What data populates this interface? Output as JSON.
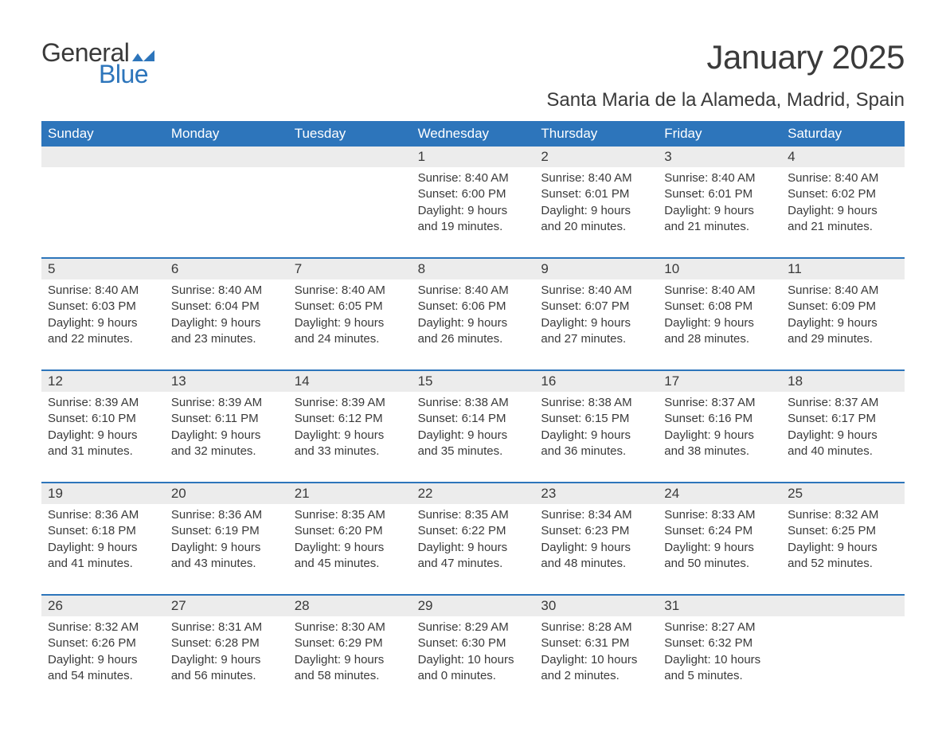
{
  "logo": {
    "text_general": "General",
    "text_blue": "Blue",
    "flag_color": "#2d75bb"
  },
  "title": "January 2025",
  "location": "Santa Maria de la Alameda, Madrid, Spain",
  "colors": {
    "header_bg": "#2d75bb",
    "header_fg": "#ffffff",
    "daynum_bg": "#ececec",
    "week_border": "#2d75bb",
    "text": "#3a3a3a",
    "background": "#ffffff"
  },
  "fonts": {
    "title_size_pt": 32,
    "location_size_pt": 18,
    "dayheader_size_pt": 13,
    "daynum_size_pt": 13,
    "body_size_pt": 11
  },
  "day_names": [
    "Sunday",
    "Monday",
    "Tuesday",
    "Wednesday",
    "Thursday",
    "Friday",
    "Saturday"
  ],
  "weeks": [
    {
      "cells": [
        {
          "num": "",
          "sunrise": "",
          "sunset": "",
          "daylight1": "",
          "daylight2": ""
        },
        {
          "num": "",
          "sunrise": "",
          "sunset": "",
          "daylight1": "",
          "daylight2": ""
        },
        {
          "num": "",
          "sunrise": "",
          "sunset": "",
          "daylight1": "",
          "daylight2": ""
        },
        {
          "num": "1",
          "sunrise": "Sunrise: 8:40 AM",
          "sunset": "Sunset: 6:00 PM",
          "daylight1": "Daylight: 9 hours",
          "daylight2": "and 19 minutes."
        },
        {
          "num": "2",
          "sunrise": "Sunrise: 8:40 AM",
          "sunset": "Sunset: 6:01 PM",
          "daylight1": "Daylight: 9 hours",
          "daylight2": "and 20 minutes."
        },
        {
          "num": "3",
          "sunrise": "Sunrise: 8:40 AM",
          "sunset": "Sunset: 6:01 PM",
          "daylight1": "Daylight: 9 hours",
          "daylight2": "and 21 minutes."
        },
        {
          "num": "4",
          "sunrise": "Sunrise: 8:40 AM",
          "sunset": "Sunset: 6:02 PM",
          "daylight1": "Daylight: 9 hours",
          "daylight2": "and 21 minutes."
        }
      ]
    },
    {
      "cells": [
        {
          "num": "5",
          "sunrise": "Sunrise: 8:40 AM",
          "sunset": "Sunset: 6:03 PM",
          "daylight1": "Daylight: 9 hours",
          "daylight2": "and 22 minutes."
        },
        {
          "num": "6",
          "sunrise": "Sunrise: 8:40 AM",
          "sunset": "Sunset: 6:04 PM",
          "daylight1": "Daylight: 9 hours",
          "daylight2": "and 23 minutes."
        },
        {
          "num": "7",
          "sunrise": "Sunrise: 8:40 AM",
          "sunset": "Sunset: 6:05 PM",
          "daylight1": "Daylight: 9 hours",
          "daylight2": "and 24 minutes."
        },
        {
          "num": "8",
          "sunrise": "Sunrise: 8:40 AM",
          "sunset": "Sunset: 6:06 PM",
          "daylight1": "Daylight: 9 hours",
          "daylight2": "and 26 minutes."
        },
        {
          "num": "9",
          "sunrise": "Sunrise: 8:40 AM",
          "sunset": "Sunset: 6:07 PM",
          "daylight1": "Daylight: 9 hours",
          "daylight2": "and 27 minutes."
        },
        {
          "num": "10",
          "sunrise": "Sunrise: 8:40 AM",
          "sunset": "Sunset: 6:08 PM",
          "daylight1": "Daylight: 9 hours",
          "daylight2": "and 28 minutes."
        },
        {
          "num": "11",
          "sunrise": "Sunrise: 8:40 AM",
          "sunset": "Sunset: 6:09 PM",
          "daylight1": "Daylight: 9 hours",
          "daylight2": "and 29 minutes."
        }
      ]
    },
    {
      "cells": [
        {
          "num": "12",
          "sunrise": "Sunrise: 8:39 AM",
          "sunset": "Sunset: 6:10 PM",
          "daylight1": "Daylight: 9 hours",
          "daylight2": "and 31 minutes."
        },
        {
          "num": "13",
          "sunrise": "Sunrise: 8:39 AM",
          "sunset": "Sunset: 6:11 PM",
          "daylight1": "Daylight: 9 hours",
          "daylight2": "and 32 minutes."
        },
        {
          "num": "14",
          "sunrise": "Sunrise: 8:39 AM",
          "sunset": "Sunset: 6:12 PM",
          "daylight1": "Daylight: 9 hours",
          "daylight2": "and 33 minutes."
        },
        {
          "num": "15",
          "sunrise": "Sunrise: 8:38 AM",
          "sunset": "Sunset: 6:14 PM",
          "daylight1": "Daylight: 9 hours",
          "daylight2": "and 35 minutes."
        },
        {
          "num": "16",
          "sunrise": "Sunrise: 8:38 AM",
          "sunset": "Sunset: 6:15 PM",
          "daylight1": "Daylight: 9 hours",
          "daylight2": "and 36 minutes."
        },
        {
          "num": "17",
          "sunrise": "Sunrise: 8:37 AM",
          "sunset": "Sunset: 6:16 PM",
          "daylight1": "Daylight: 9 hours",
          "daylight2": "and 38 minutes."
        },
        {
          "num": "18",
          "sunrise": "Sunrise: 8:37 AM",
          "sunset": "Sunset: 6:17 PM",
          "daylight1": "Daylight: 9 hours",
          "daylight2": "and 40 minutes."
        }
      ]
    },
    {
      "cells": [
        {
          "num": "19",
          "sunrise": "Sunrise: 8:36 AM",
          "sunset": "Sunset: 6:18 PM",
          "daylight1": "Daylight: 9 hours",
          "daylight2": "and 41 minutes."
        },
        {
          "num": "20",
          "sunrise": "Sunrise: 8:36 AM",
          "sunset": "Sunset: 6:19 PM",
          "daylight1": "Daylight: 9 hours",
          "daylight2": "and 43 minutes."
        },
        {
          "num": "21",
          "sunrise": "Sunrise: 8:35 AM",
          "sunset": "Sunset: 6:20 PM",
          "daylight1": "Daylight: 9 hours",
          "daylight2": "and 45 minutes."
        },
        {
          "num": "22",
          "sunrise": "Sunrise: 8:35 AM",
          "sunset": "Sunset: 6:22 PM",
          "daylight1": "Daylight: 9 hours",
          "daylight2": "and 47 minutes."
        },
        {
          "num": "23",
          "sunrise": "Sunrise: 8:34 AM",
          "sunset": "Sunset: 6:23 PM",
          "daylight1": "Daylight: 9 hours",
          "daylight2": "and 48 minutes."
        },
        {
          "num": "24",
          "sunrise": "Sunrise: 8:33 AM",
          "sunset": "Sunset: 6:24 PM",
          "daylight1": "Daylight: 9 hours",
          "daylight2": "and 50 minutes."
        },
        {
          "num": "25",
          "sunrise": "Sunrise: 8:32 AM",
          "sunset": "Sunset: 6:25 PM",
          "daylight1": "Daylight: 9 hours",
          "daylight2": "and 52 minutes."
        }
      ]
    },
    {
      "cells": [
        {
          "num": "26",
          "sunrise": "Sunrise: 8:32 AM",
          "sunset": "Sunset: 6:26 PM",
          "daylight1": "Daylight: 9 hours",
          "daylight2": "and 54 minutes."
        },
        {
          "num": "27",
          "sunrise": "Sunrise: 8:31 AM",
          "sunset": "Sunset: 6:28 PM",
          "daylight1": "Daylight: 9 hours",
          "daylight2": "and 56 minutes."
        },
        {
          "num": "28",
          "sunrise": "Sunrise: 8:30 AM",
          "sunset": "Sunset: 6:29 PM",
          "daylight1": "Daylight: 9 hours",
          "daylight2": "and 58 minutes."
        },
        {
          "num": "29",
          "sunrise": "Sunrise: 8:29 AM",
          "sunset": "Sunset: 6:30 PM",
          "daylight1": "Daylight: 10 hours",
          "daylight2": "and 0 minutes."
        },
        {
          "num": "30",
          "sunrise": "Sunrise: 8:28 AM",
          "sunset": "Sunset: 6:31 PM",
          "daylight1": "Daylight: 10 hours",
          "daylight2": "and 2 minutes."
        },
        {
          "num": "31",
          "sunrise": "Sunrise: 8:27 AM",
          "sunset": "Sunset: 6:32 PM",
          "daylight1": "Daylight: 10 hours",
          "daylight2": "and 5 minutes."
        },
        {
          "num": "",
          "sunrise": "",
          "sunset": "",
          "daylight1": "",
          "daylight2": ""
        }
      ]
    }
  ]
}
